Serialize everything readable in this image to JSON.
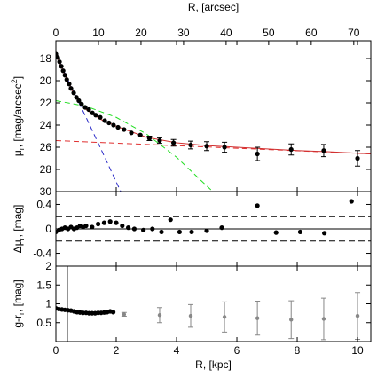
{
  "chart_data": [
    {
      "type": "scatter",
      "x2label": "R, [arcsec]",
      "x2lim": [
        0,
        74
      ],
      "x2ticks": [
        0,
        10,
        20,
        30,
        40,
        50,
        60,
        70
      ],
      "xlim": [
        0,
        10.44
      ],
      "xticks": [
        0,
        2,
        4,
        6,
        8,
        10
      ],
      "ylabel": {
        "main": "μ",
        "sub": "r",
        "rest": ", [mag/arcsec",
        "sup": "2",
        "end": "]"
      },
      "ylim": [
        16.4,
        30
      ],
      "y_inverted": true,
      "yticks": [
        18,
        20,
        22,
        24,
        26,
        28,
        30
      ],
      "series": [
        {
          "style": "dashed",
          "color": "#2a2ac8",
          "x": [
            0,
            0.5,
            1,
            1.5,
            2.15
          ],
          "values": [
            17.6,
            20.5,
            23.3,
            26.2,
            30
          ]
        },
        {
          "style": "dashed",
          "color": "#22dd22",
          "x": [
            0,
            1,
            2,
            3,
            4,
            5.2
          ],
          "values": [
            21.8,
            22.3,
            23.3,
            24.8,
            26.9,
            30
          ]
        },
        {
          "style": "dashed",
          "color": "#e03030",
          "x": [
            0,
            10.44
          ],
          "values": [
            25.4,
            26.6
          ]
        },
        {
          "style": "solid",
          "color": "#d03030",
          "x": [
            0,
            0.3,
            0.6,
            1,
            1.5,
            2,
            3,
            4,
            5,
            6,
            7,
            8,
            9,
            10.44
          ],
          "values": [
            17.6,
            19.5,
            21.2,
            22.6,
            23.5,
            24.1,
            25.1,
            25.6,
            25.85,
            26.0,
            26.15,
            26.3,
            26.4,
            26.6
          ]
        },
        {
          "style": "points",
          "color": "#000000",
          "x": [
            0,
            0.06,
            0.12,
            0.18,
            0.24,
            0.3,
            0.36,
            0.44,
            0.5,
            0.59,
            0.68,
            0.76,
            0.85,
            0.97,
            1.09,
            1.21,
            1.32,
            1.47,
            1.62,
            1.76,
            1.91,
            2.06,
            2.26,
            2.5,
            2.8,
            3.1,
            3.44,
            3.9,
            4.47,
            5.0,
            5.59,
            6.68,
            7.8,
            8.88,
            10.0
          ],
          "values": [
            17.6,
            17.9,
            18.3,
            18.7,
            19.1,
            19.5,
            19.9,
            20.3,
            20.7,
            21.1,
            21.5,
            21.8,
            22.1,
            22.4,
            22.6,
            22.9,
            23.1,
            23.3,
            23.6,
            23.8,
            24.0,
            24.2,
            24.4,
            24.7,
            24.9,
            25.2,
            25.4,
            25.6,
            25.8,
            25.9,
            26.0,
            26.6,
            26.2,
            26.3,
            27.0
          ],
          "errors": [
            null,
            null,
            null,
            null,
            null,
            null,
            null,
            null,
            null,
            null,
            null,
            null,
            null,
            null,
            null,
            null,
            null,
            null,
            null,
            null,
            null,
            null,
            null,
            null,
            null,
            0.2,
            0.25,
            0.3,
            0.35,
            0.4,
            0.45,
            0.6,
            0.5,
            0.55,
            0.7
          ]
        }
      ]
    },
    {
      "type": "scatter",
      "xlim": [
        0,
        10.44
      ],
      "xticks": [
        0,
        2,
        4,
        6,
        8,
        10
      ],
      "ylabel": {
        "main": "Δμ",
        "sub": "r",
        "rest": ", [mag]"
      },
      "ylim": [
        -0.61,
        0.61
      ],
      "yticks": [
        -0.4,
        0,
        0.4
      ],
      "hlines": [
        {
          "value": 0,
          "style": "solid"
        },
        {
          "value": 0.2,
          "style": "dashed"
        },
        {
          "value": -0.2,
          "style": "dashed"
        }
      ],
      "series": [
        {
          "style": "points",
          "color": "#000000",
          "x": [
            0,
            0.1,
            0.2,
            0.3,
            0.4,
            0.5,
            0.6,
            0.7,
            0.8,
            0.9,
            1.0,
            1.2,
            1.4,
            1.6,
            1.8,
            2.0,
            2.2,
            2.4,
            2.6,
            2.9,
            3.2,
            3.5,
            3.8,
            4.1,
            4.5,
            5.0,
            5.5,
            6.68,
            7.3,
            8.1,
            8.9,
            9.8
          ],
          "values": [
            -0.05,
            -0.02,
            0,
            0.02,
            0,
            0.03,
            0,
            0.02,
            0.05,
            0.03,
            0.05,
            0.03,
            0.08,
            0.1,
            0.12,
            0.1,
            0.05,
            0.02,
            0,
            -0.02,
            0,
            -0.05,
            0.15,
            -0.05,
            -0.05,
            -0.03,
            0.02,
            0.38,
            -0.06,
            -0.05,
            -0.07,
            0.45
          ]
        }
      ]
    },
    {
      "type": "scatter",
      "xlabel": "R, [kpc]",
      "xlim": [
        0,
        10.44
      ],
      "xticks": [
        0,
        2,
        4,
        6,
        8,
        10
      ],
      "ylabel": {
        "main": "g-r",
        "sub": "r",
        "rest": ", [mag]"
      },
      "ylim": [
        0,
        2
      ],
      "yticks": [
        0.5,
        1,
        1.5,
        2
      ],
      "vline": 0.38,
      "series": [
        {
          "style": "points",
          "color": "#000000",
          "x": [
            0,
            0.1,
            0.2,
            0.3,
            0.4,
            0.5,
            0.6,
            0.7,
            0.8,
            0.9,
            1.0,
            1.1,
            1.2,
            1.3,
            1.4,
            1.5,
            1.6,
            1.7,
            1.8,
            1.9
          ],
          "values": [
            0.88,
            0.86,
            0.85,
            0.84,
            0.83,
            0.82,
            0.8,
            0.78,
            0.77,
            0.76,
            0.76,
            0.75,
            0.75,
            0.75,
            0.76,
            0.76,
            0.77,
            0.78,
            0.8,
            0.78
          ]
        },
        {
          "style": "points",
          "color": "#888888",
          "x": [
            2.26,
            3.44,
            4.47,
            5.59,
            6.68,
            7.8,
            8.88,
            10.0
          ],
          "values": [
            0.72,
            0.7,
            0.68,
            0.65,
            0.62,
            0.58,
            0.6,
            0.68
          ],
          "errors": [
            0.05,
            0.2,
            0.3,
            0.4,
            0.45,
            0.5,
            0.55,
            0.62
          ]
        }
      ]
    }
  ]
}
